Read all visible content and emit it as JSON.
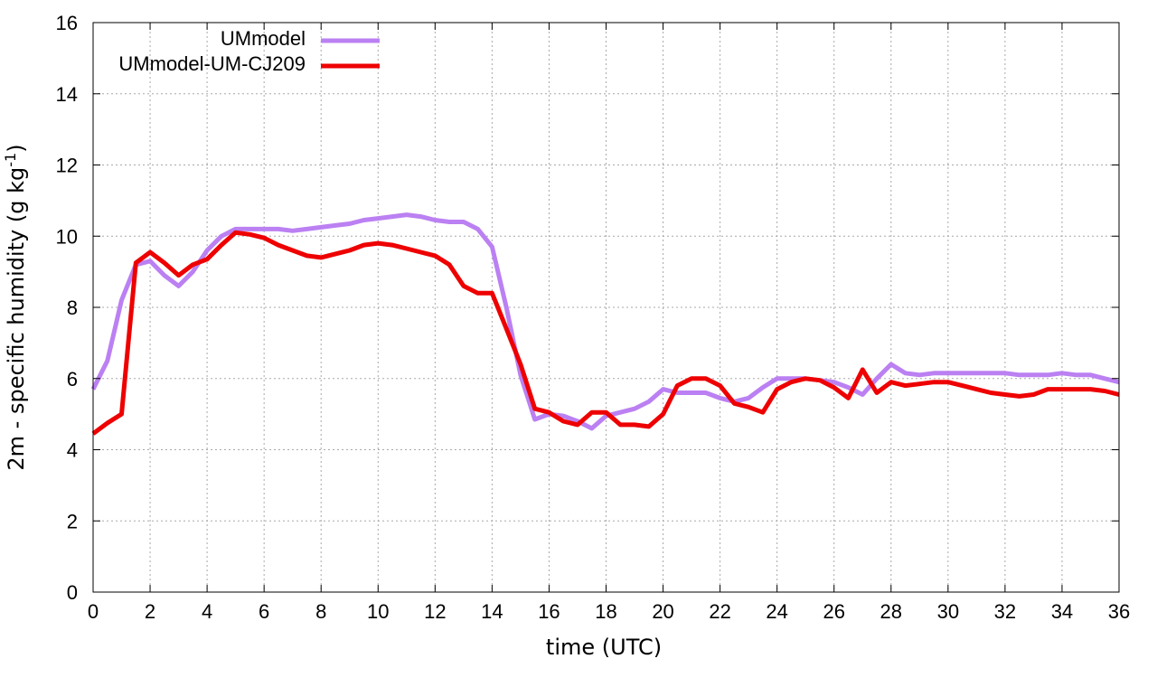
{
  "chart_data": {
    "type": "line",
    "xlabel": "time (UTC)",
    "ylabel": {
      "prefix": "2m - specific humidity (g kg",
      "sup": "-1",
      "suffix": ")"
    },
    "xlim": [
      0,
      36
    ],
    "ylim": [
      0,
      16
    ],
    "xticks": [
      0,
      2,
      4,
      6,
      8,
      10,
      12,
      14,
      16,
      18,
      20,
      22,
      24,
      26,
      28,
      30,
      32,
      34,
      36
    ],
    "yticks": [
      0,
      2,
      4,
      6,
      8,
      10,
      12,
      14,
      16
    ],
    "grid": true,
    "legend_position": "top-left",
    "series": [
      {
        "name": "UMmodel",
        "color": "#bb80f2",
        "x": [
          0,
          0.5,
          1,
          1.5,
          2,
          2.5,
          3,
          3.5,
          4,
          4.5,
          5,
          5.5,
          6,
          6.5,
          7,
          7.5,
          8,
          8.5,
          9,
          9.5,
          10,
          10.5,
          11,
          11.5,
          12,
          12.5,
          13,
          13.5,
          14,
          14.5,
          15,
          15.5,
          16,
          16.5,
          17,
          17.5,
          18,
          18.5,
          19,
          19.5,
          20,
          20.5,
          21,
          21.5,
          22,
          22.5,
          23,
          23.5,
          24,
          24.5,
          25,
          25.5,
          26,
          26.5,
          27,
          27.5,
          28,
          28.5,
          29,
          29.5,
          30,
          30.5,
          31,
          31.5,
          32,
          32.5,
          33,
          33.5,
          34,
          34.5,
          35,
          35.5,
          36
        ],
        "y": [
          5.7,
          6.5,
          8.2,
          9.2,
          9.3,
          8.9,
          8.6,
          9.0,
          9.6,
          10.0,
          10.2,
          10.2,
          10.2,
          10.2,
          10.15,
          10.2,
          10.25,
          10.3,
          10.35,
          10.45,
          10.5,
          10.55,
          10.6,
          10.55,
          10.45,
          10.4,
          10.4,
          10.2,
          9.7,
          8.0,
          6.1,
          4.85,
          5.0,
          4.95,
          4.8,
          4.6,
          4.95,
          5.05,
          5.15,
          5.35,
          5.7,
          5.6,
          5.6,
          5.6,
          5.45,
          5.35,
          5.45,
          5.75,
          6.0,
          6.0,
          6.0,
          5.95,
          5.9,
          5.75,
          5.55,
          6.0,
          6.4,
          6.15,
          6.1,
          6.15,
          6.15,
          6.15,
          6.15,
          6.15,
          6.15,
          6.1,
          6.1,
          6.1,
          6.15,
          6.1,
          6.1,
          6.0,
          5.9
        ]
      },
      {
        "name": "UMmodel-UM-CJ209",
        "color": "#ee0000",
        "x": [
          0,
          0.5,
          1,
          1.5,
          2,
          2.5,
          3,
          3.5,
          4,
          4.5,
          5,
          5.5,
          6,
          6.5,
          7,
          7.5,
          8,
          8.5,
          9,
          9.5,
          10,
          10.5,
          11,
          11.5,
          12,
          12.5,
          13,
          13.5,
          14,
          14.5,
          15,
          15.5,
          16,
          16.5,
          17,
          17.5,
          18,
          18.5,
          19,
          19.5,
          20,
          20.5,
          21,
          21.5,
          22,
          22.5,
          23,
          23.5,
          24,
          24.5,
          25,
          25.5,
          26,
          26.5,
          27,
          27.5,
          28,
          28.5,
          29,
          29.5,
          30,
          30.5,
          31,
          31.5,
          32,
          32.5,
          33,
          33.5,
          34,
          34.5,
          35,
          35.5,
          36
        ],
        "y": [
          4.45,
          4.75,
          5.0,
          9.25,
          9.55,
          9.25,
          8.9,
          9.2,
          9.35,
          9.75,
          10.1,
          10.05,
          9.95,
          9.75,
          9.6,
          9.45,
          9.4,
          9.5,
          9.6,
          9.75,
          9.8,
          9.75,
          9.65,
          9.55,
          9.45,
          9.2,
          8.6,
          8.4,
          8.4,
          7.4,
          6.4,
          5.15,
          5.05,
          4.8,
          4.7,
          5.05,
          5.05,
          4.7,
          4.7,
          4.65,
          5.0,
          5.8,
          6.0,
          6.0,
          5.8,
          5.3,
          5.2,
          5.05,
          5.7,
          5.9,
          6.0,
          5.95,
          5.75,
          5.45,
          6.25,
          5.6,
          5.9,
          5.8,
          5.85,
          5.9,
          5.9,
          5.8,
          5.7,
          5.6,
          5.55,
          5.5,
          5.55,
          5.7,
          5.7,
          5.7,
          5.7,
          5.65,
          5.55
        ]
      }
    ]
  }
}
